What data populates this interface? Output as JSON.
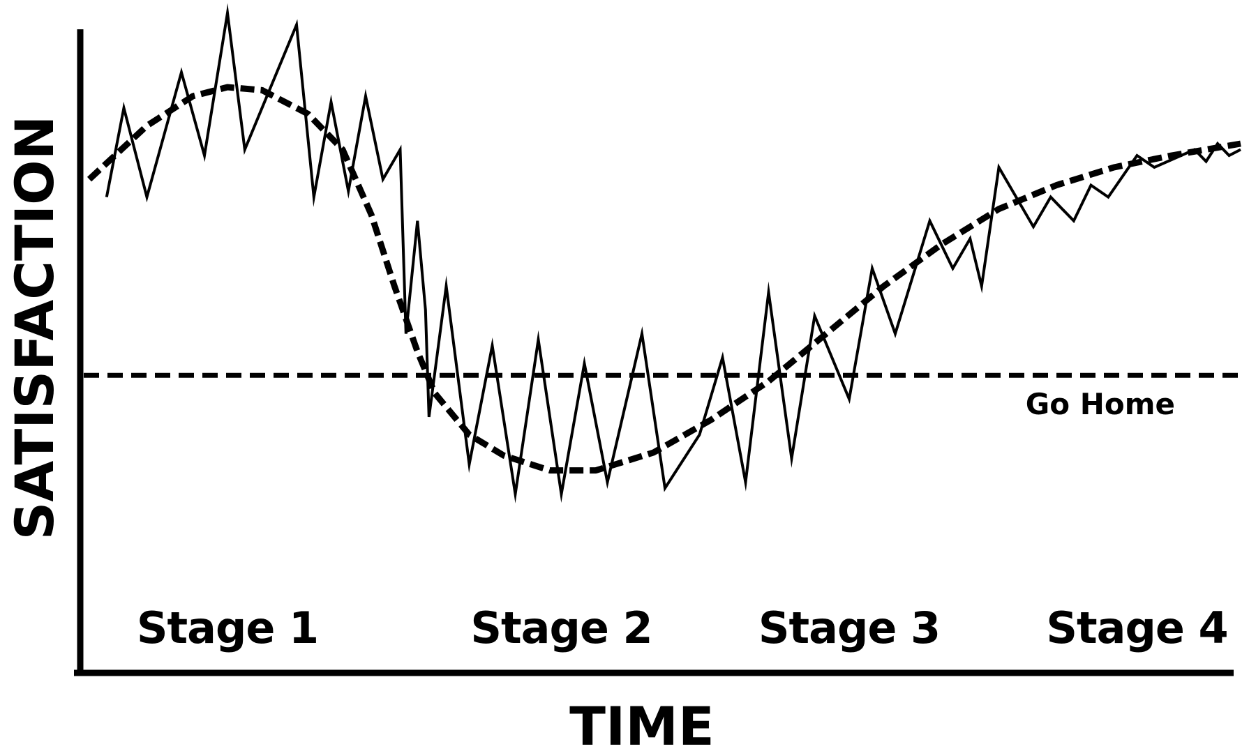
{
  "chart_data": {
    "type": "line",
    "title": "",
    "xlabel": "TIME",
    "ylabel": "SATISFACTION",
    "xlim": [
      0,
      100
    ],
    "ylim": [
      0,
      100
    ],
    "grid": false,
    "x_ticks": [],
    "y_ticks": [],
    "series": [
      {
        "style": "solid-zigzag",
        "points": [
          [
            1.5,
            68
          ],
          [
            3,
            83
          ],
          [
            5,
            68
          ],
          [
            8,
            89
          ],
          [
            10,
            75
          ],
          [
            12,
            99
          ],
          [
            13.5,
            76
          ],
          [
            18,
            97
          ],
          [
            19.5,
            68
          ],
          [
            21,
            84
          ],
          [
            22.5,
            69
          ],
          [
            24,
            85
          ],
          [
            25.5,
            71
          ],
          [
            27,
            76
          ],
          [
            27.5,
            45
          ],
          [
            28.5,
            64
          ],
          [
            29.2,
            49
          ],
          [
            29.5,
            31
          ],
          [
            31,
            53
          ],
          [
            33,
            23
          ],
          [
            35,
            43
          ],
          [
            37,
            18
          ],
          [
            39,
            44
          ],
          [
            41,
            18
          ],
          [
            43,
            40
          ],
          [
            45,
            20
          ],
          [
            48,
            45
          ],
          [
            50,
            19
          ],
          [
            53,
            28
          ],
          [
            55,
            41
          ],
          [
            57,
            20
          ],
          [
            59,
            52
          ],
          [
            61,
            24
          ],
          [
            63,
            48
          ],
          [
            66,
            34
          ],
          [
            68,
            56
          ],
          [
            70,
            45
          ],
          [
            73,
            64
          ],
          [
            75,
            56
          ],
          [
            76.5,
            61
          ],
          [
            77.5,
            53
          ],
          [
            79,
            73
          ],
          [
            82,
            63
          ],
          [
            83.5,
            68
          ],
          [
            85.5,
            64
          ],
          [
            87,
            70
          ],
          [
            88.5,
            68
          ],
          [
            91,
            75
          ],
          [
            92.5,
            73
          ],
          [
            96,
            76
          ],
          [
            97,
            74
          ],
          [
            98,
            77
          ],
          [
            99,
            75
          ],
          [
            100,
            76
          ]
        ]
      },
      {
        "style": "dashed-trend",
        "points": [
          [
            0,
            71
          ],
          [
            5,
            80
          ],
          [
            9,
            85
          ],
          [
            12,
            86.5
          ],
          [
            15,
            86
          ],
          [
            19,
            82
          ],
          [
            22,
            76
          ],
          [
            24.5,
            65
          ],
          [
            26.5,
            53
          ],
          [
            28.5,
            42
          ],
          [
            30,
            35
          ],
          [
            33,
            28
          ],
          [
            36,
            24.5
          ],
          [
            40,
            22
          ],
          [
            44,
            22
          ],
          [
            49,
            25
          ],
          [
            54,
            30.5
          ],
          [
            59,
            37
          ],
          [
            64,
            45
          ],
          [
            69,
            53
          ],
          [
            74,
            60
          ],
          [
            79,
            66
          ],
          [
            84,
            70
          ],
          [
            89,
            73
          ],
          [
            94,
            75
          ],
          [
            100,
            77
          ]
        ]
      }
    ],
    "reference_lines": [
      {
        "y": 38,
        "style": "dashed",
        "label": "Go Home"
      }
    ],
    "annotations": [
      {
        "text": "Stage 1",
        "x": 12
      },
      {
        "text": "Stage 2",
        "x": 41
      },
      {
        "text": "Stage 3",
        "x": 66
      },
      {
        "text": "Stage 4",
        "x": 91
      }
    ]
  }
}
